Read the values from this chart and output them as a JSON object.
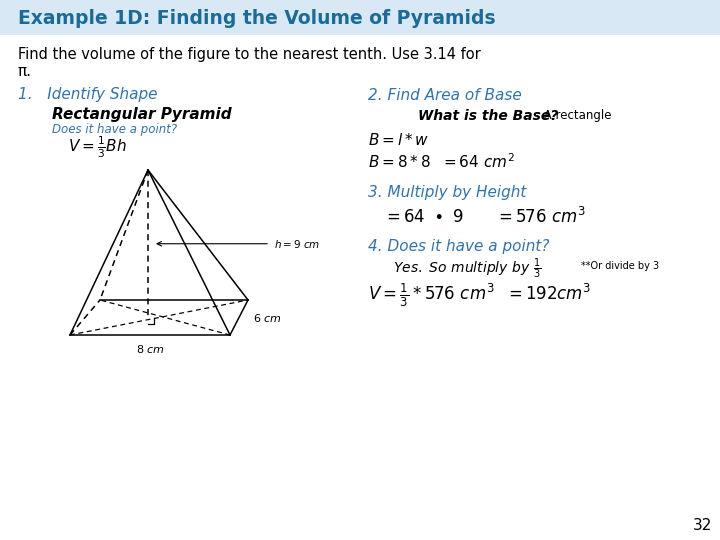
{
  "title": "Example 1D: Finding the Volume of Pyramids",
  "title_color": "#1A6B99",
  "background_color": "#ffffff",
  "title_bg": "#ffffff",
  "intro_line1": "Find the volume of the figure to the nearest tenth. Use 3.14 for",
  "intro_line2": "π.",
  "step1_header": "1.   Identify Shape",
  "step1_shape": "Rectangular Pyramid",
  "step1_note": "Does it have a point?",
  "step2_header": "2. Find Area of Base",
  "step2_q": "What is the Base?",
  "step2_ans": " A rectangle",
  "step3_header": "3. Multiply by Height",
  "step4_header": "4. Does it have a point?",
  "step4_note": "**Or divide by 3",
  "page_num": "32",
  "blue_color": "#2E74B5",
  "dark_blue": "#1A6B99",
  "black": "#000000"
}
